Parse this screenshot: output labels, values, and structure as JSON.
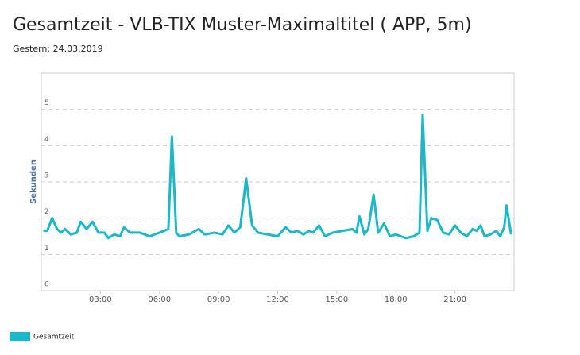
{
  "chart_data": {
    "type": "line",
    "title": "Gesamtzeit - VLB-TIX Muster-Maximaltitel ( APP, 5m)",
    "subtitle": "Gestern: 24.03.2019",
    "y_label": "Sekunden",
    "xlim": [
      0,
      24
    ],
    "xticks": [
      {
        "value": 3,
        "label": "03:00"
      },
      {
        "value": 6,
        "label": "06:00"
      },
      {
        "value": 9,
        "label": "09:00"
      },
      {
        "value": 12,
        "label": "12:00"
      },
      {
        "value": 15,
        "label": "15:00"
      },
      {
        "value": 18,
        "label": "18:00"
      },
      {
        "value": 21,
        "label": "21:00"
      }
    ],
    "ylim": [
      0,
      6
    ],
    "yticks": [
      0,
      1,
      2,
      3,
      4,
      5
    ],
    "grid": true,
    "legend": "bottom-left",
    "x": [
      0.1,
      0.3,
      0.55,
      0.8,
      1.0,
      1.2,
      1.5,
      1.8,
      2.0,
      2.3,
      2.6,
      2.9,
      3.2,
      3.4,
      3.7,
      4.0,
      4.2,
      4.5,
      5.0,
      5.5,
      6.0,
      6.45,
      6.63,
      6.85,
      7.0,
      7.5,
      8.0,
      8.3,
      8.8,
      9.2,
      9.5,
      9.8,
      10.1,
      10.4,
      10.7,
      11.0,
      11.5,
      12.0,
      12.4,
      12.7,
      13.0,
      13.3,
      13.6,
      13.8,
      14.1,
      14.4,
      14.8,
      15.3,
      15.8,
      16.0,
      16.15,
      16.4,
      16.6,
      16.87,
      17.1,
      17.4,
      17.7,
      18.0,
      18.5,
      18.9,
      19.2,
      19.36,
      19.6,
      19.8,
      20.1,
      20.4,
      20.7,
      21.0,
      21.3,
      21.6,
      21.9,
      22.1,
      22.3,
      22.5,
      22.8,
      23.1,
      23.3,
      23.5,
      23.62,
      23.85
    ],
    "series": [
      {
        "name": "Gesamtzeit",
        "color": "#1ab8c8",
        "values": [
          1.65,
          1.65,
          2.0,
          1.7,
          1.6,
          1.7,
          1.55,
          1.6,
          1.9,
          1.7,
          1.9,
          1.6,
          1.6,
          1.45,
          1.55,
          1.5,
          1.75,
          1.6,
          1.6,
          1.5,
          1.6,
          1.7,
          4.25,
          1.6,
          1.5,
          1.55,
          1.7,
          1.55,
          1.6,
          1.55,
          1.8,
          1.6,
          1.75,
          3.1,
          1.8,
          1.6,
          1.55,
          1.5,
          1.75,
          1.6,
          1.65,
          1.55,
          1.65,
          1.6,
          1.8,
          1.5,
          1.6,
          1.65,
          1.7,
          1.6,
          2.05,
          1.55,
          1.7,
          2.65,
          1.6,
          1.85,
          1.5,
          1.55,
          1.45,
          1.5,
          1.6,
          4.85,
          1.65,
          2.0,
          1.95,
          1.6,
          1.55,
          1.8,
          1.6,
          1.5,
          1.7,
          1.65,
          1.8,
          1.5,
          1.55,
          1.65,
          1.5,
          1.75,
          2.35,
          1.55
        ]
      }
    ]
  }
}
